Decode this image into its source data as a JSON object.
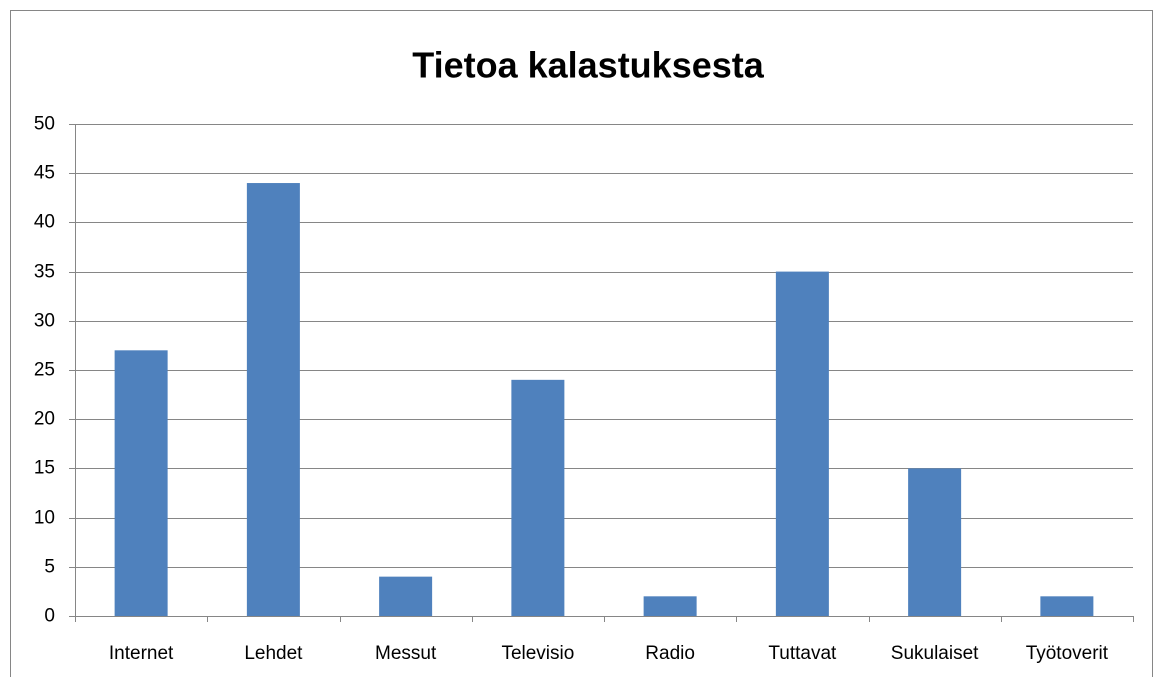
{
  "chart_data": {
    "type": "bar",
    "title": "Tietoa kalastuksesta",
    "categories": [
      "Internet",
      "Lehdet",
      "Messut",
      "Televisio",
      "Radio",
      "Tuttavat",
      "Sukulaiset",
      "Työtoverit"
    ],
    "values": [
      27,
      44,
      4,
      24,
      2,
      35,
      15,
      2
    ],
    "color": "#4f81bd",
    "ylim": [
      0,
      50
    ],
    "yticks": [
      0,
      5,
      10,
      15,
      20,
      25,
      30,
      35,
      40,
      45,
      50
    ],
    "grid": true
  }
}
